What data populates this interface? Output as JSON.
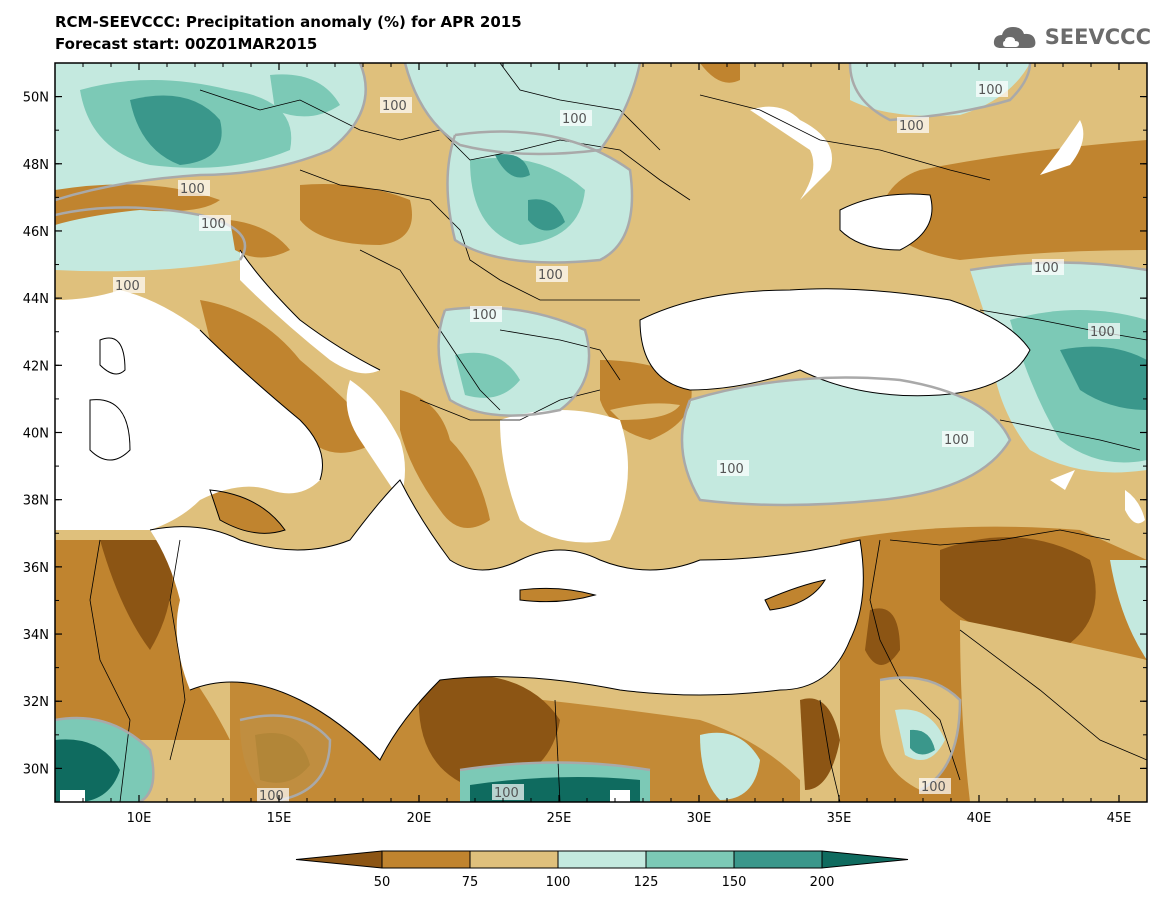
{
  "header": {
    "title": "RCM-SEEVCCC: Precipitation anomaly (%) for APR 2015",
    "subtitle": "Forecast start: 00Z01MAR2015"
  },
  "logo": {
    "text": "SEEVCCC",
    "icon": "cloud-icon"
  },
  "map": {
    "lon_range": [
      7,
      46
    ],
    "lat_range": [
      29,
      51
    ],
    "lon_ticks": [
      "10E",
      "15E",
      "20E",
      "25E",
      "30E",
      "35E",
      "40E",
      "45E"
    ],
    "lat_ticks": [
      "30N",
      "32N",
      "34N",
      "36N",
      "38N",
      "40N",
      "42N",
      "44N",
      "46N",
      "48N",
      "50N"
    ],
    "contour_label": "100"
  },
  "colorbar": {
    "labels": [
      "50",
      "75",
      "100",
      "125",
      "150",
      "200"
    ],
    "colors": [
      "#8c5514",
      "#c0842f",
      "#dfc07c",
      "#c4e9df",
      "#7cc9b6",
      "#3a978b",
      "#0f6b5f"
    ]
  }
}
